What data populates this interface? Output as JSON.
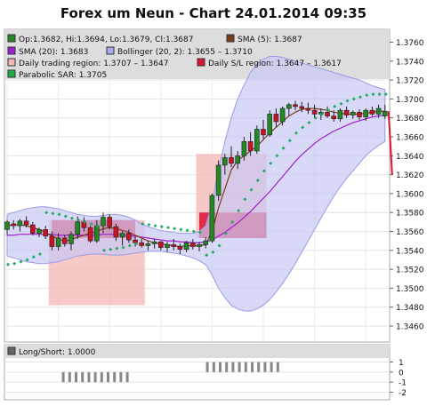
{
  "title": "Forex um Neun - Chart 24.01.2014 09:35",
  "legend": {
    "ohlc": {
      "label": "Op:1.3682, Hi:1.3694, Lo:1.3679, Cl:1.3687",
      "color": "#228822"
    },
    "sma5": {
      "label": "SMA (5): 1.3687",
      "color": "#7a3b1a"
    },
    "sma20": {
      "label": "SMA (20): 1.3683",
      "color": "#a020d0"
    },
    "bollinger": {
      "label": "Bollinger (20, 2): 1.3655 – 1.3710",
      "color": "#aaaaee"
    },
    "trading_region": {
      "label": "Daily trading region: 1.3707 – 1.3647",
      "color": "#f4b6b6"
    },
    "sl_region": {
      "label": "Daily S/L region: 1.3647 – 1.3617",
      "color": "#dd1133"
    },
    "psar": {
      "label": "Parabolic SAR: 1.3705",
      "color": "#22aa44"
    }
  },
  "lower_legend": {
    "label": "Long/Short: 1.0000",
    "color": "#666666"
  },
  "chart_data": {
    "type": "candlestick",
    "y_ticks": [
      "1.3460",
      "1.3480",
      "1.3500",
      "1.3520",
      "1.3540",
      "1.3560",
      "1.3580",
      "1.3600",
      "1.3620",
      "1.3640",
      "1.3660",
      "1.3680",
      "1.3700",
      "1.3720",
      "1.3740",
      "1.3760"
    ],
    "ylim": [
      1.346,
      1.377
    ],
    "lower_ticks": [
      "1",
      "0",
      "-1",
      "-2"
    ],
    "lower_ylim": [
      -2.4,
      1.4
    ],
    "candles": [
      [
        1.3562,
        1.3572,
        1.3556,
        1.357
      ],
      [
        1.3568,
        1.3572,
        1.3562,
        1.3566
      ],
      [
        1.3566,
        1.3573,
        1.356,
        1.3571
      ],
      [
        1.3571,
        1.3576,
        1.3564,
        1.3567
      ],
      [
        1.3567,
        1.357,
        1.3556,
        1.3558
      ],
      [
        1.3558,
        1.3564,
        1.3554,
        1.3562
      ],
      [
        1.3562,
        1.3566,
        1.3552,
        1.3555
      ],
      [
        1.3555,
        1.356,
        1.354,
        1.3544
      ],
      [
        1.3544,
        1.3558,
        1.354,
        1.3553
      ],
      [
        1.3553,
        1.3556,
        1.3544,
        1.3547
      ],
      [
        1.3547,
        1.356,
        1.354,
        1.3557
      ],
      [
        1.3557,
        1.3576,
        1.3552,
        1.357
      ],
      [
        1.357,
        1.3575,
        1.356,
        1.3564
      ],
      [
        1.3564,
        1.3566,
        1.3548,
        1.355
      ],
      [
        1.355,
        1.3572,
        1.3548,
        1.3566
      ],
      [
        1.3566,
        1.358,
        1.3558,
        1.3575
      ],
      [
        1.3575,
        1.3578,
        1.3562,
        1.3565
      ],
      [
        1.3565,
        1.3568,
        1.355,
        1.3554
      ],
      [
        1.3554,
        1.356,
        1.3545,
        1.3558
      ],
      [
        1.3558,
        1.3562,
        1.3548,
        1.3551
      ],
      [
        1.3551,
        1.3555,
        1.3544,
        1.3548
      ],
      [
        1.3548,
        1.3552,
        1.3543,
        1.3545
      ],
      [
        1.3545,
        1.355,
        1.354,
        1.3547
      ],
      [
        1.3547,
        1.3552,
        1.3542,
        1.3549
      ],
      [
        1.3549,
        1.355,
        1.354,
        1.3543
      ],
      [
        1.3543,
        1.3549,
        1.3538,
        1.3546
      ],
      [
        1.3546,
        1.3552,
        1.354,
        1.3544
      ],
      [
        1.3544,
        1.3547,
        1.3536,
        1.3541
      ],
      [
        1.3541,
        1.355,
        1.3538,
        1.3548
      ],
      [
        1.3548,
        1.3552,
        1.3541,
        1.3544
      ],
      [
        1.3544,
        1.3549,
        1.3539,
        1.3546
      ],
      [
        1.3546,
        1.3554,
        1.3542,
        1.355
      ],
      [
        1.355,
        1.36,
        1.3548,
        1.3598
      ],
      [
        1.3598,
        1.3635,
        1.3592,
        1.363
      ],
      [
        1.363,
        1.3642,
        1.362,
        1.3638
      ],
      [
        1.3638,
        1.365,
        1.3628,
        1.3632
      ],
      [
        1.3632,
        1.3645,
        1.3626,
        1.364
      ],
      [
        1.364,
        1.366,
        1.3635,
        1.3655
      ],
      [
        1.3655,
        1.3665,
        1.364,
        1.3645
      ],
      [
        1.3645,
        1.3672,
        1.3642,
        1.3668
      ],
      [
        1.3668,
        1.3678,
        1.3658,
        1.3662
      ],
      [
        1.3662,
        1.3688,
        1.366,
        1.3684
      ],
      [
        1.3684,
        1.369,
        1.367,
        1.3676
      ],
      [
        1.3676,
        1.3692,
        1.3672,
        1.369
      ],
      [
        1.369,
        1.3696,
        1.3682,
        1.3694
      ],
      [
        1.3694,
        1.3698,
        1.3688,
        1.3692
      ],
      [
        1.3692,
        1.3697,
        1.3686,
        1.369
      ],
      [
        1.369,
        1.3696,
        1.3684,
        1.3688
      ],
      [
        1.3688,
        1.3694,
        1.368,
        1.3684
      ],
      [
        1.3684,
        1.369,
        1.3678,
        1.3686
      ],
      [
        1.3686,
        1.3692,
        1.368,
        1.3682
      ],
      [
        1.3682,
        1.3688,
        1.3676,
        1.3679
      ],
      [
        1.3679,
        1.369,
        1.3676,
        1.3688
      ],
      [
        1.3688,
        1.3692,
        1.368,
        1.3683
      ],
      [
        1.3683,
        1.3688,
        1.3679,
        1.3686
      ],
      [
        1.3686,
        1.3689,
        1.3678,
        1.3681
      ],
      [
        1.3681,
        1.369,
        1.3677,
        1.3688
      ],
      [
        1.3688,
        1.3692,
        1.3682,
        1.3684
      ],
      [
        1.3684,
        1.3694,
        1.368,
        1.369
      ],
      [
        1.3682,
        1.3694,
        1.3679,
        1.3687
      ]
    ],
    "sma5": [
      1.3566,
      1.3567,
      1.3567,
      1.3566,
      1.3564,
      1.3562,
      1.3559,
      1.3555,
      1.3552,
      1.355,
      1.3551,
      1.3554,
      1.3556,
      1.3558,
      1.356,
      1.3563,
      1.3564,
      1.3563,
      1.3561,
      1.3559,
      1.3556,
      1.3553,
      1.355,
      1.3548,
      1.3547,
      1.3546,
      1.3545,
      1.3544,
      1.3545,
      1.3545,
      1.3545,
      1.3546,
      1.356,
      1.3585,
      1.3605,
      1.3625,
      1.3635,
      1.364,
      1.3645,
      1.365,
      1.3657,
      1.3664,
      1.367,
      1.3676,
      1.3682,
      1.3686,
      1.3689,
      1.369,
      1.369,
      1.3689,
      1.3688,
      1.3686,
      1.3685,
      1.3684,
      1.3684,
      1.3684,
      1.3685,
      1.3686,
      1.3687,
      1.3687
    ],
    "sma20": [
      1.3556,
      1.3556,
      1.3557,
      1.3557,
      1.3557,
      1.3557,
      1.3557,
      1.3557,
      1.3556,
      1.3556,
      1.3556,
      1.3556,
      1.3556,
      1.3556,
      1.3556,
      1.3557,
      1.3557,
      1.3557,
      1.3556,
      1.3556,
      1.3555,
      1.3554,
      1.3553,
      1.3552,
      1.3551,
      1.355,
      1.355,
      1.3549,
      1.3549,
      1.3548,
      1.3548,
      1.3549,
      1.3551,
      1.3555,
      1.3559,
      1.3564,
      1.3569,
      1.3575,
      1.3581,
      1.3588,
      1.3595,
      1.3602,
      1.361,
      1.3618,
      1.3626,
      1.3634,
      1.3641,
      1.3647,
      1.3653,
      1.3658,
      1.3662,
      1.3666,
      1.3669,
      1.3672,
      1.3675,
      1.3677,
      1.3679,
      1.3681,
      1.3682,
      1.3683
    ],
    "bb_upper": [
      1.3578,
      1.358,
      1.3582,
      1.3584,
      1.3585,
      1.3586,
      1.3586,
      1.3585,
      1.3584,
      1.3582,
      1.358,
      1.3578,
      1.3577,
      1.3576,
      1.3576,
      1.3577,
      1.3578,
      1.3578,
      1.3577,
      1.3575,
      1.3572,
      1.3568,
      1.3565,
      1.3563,
      1.3561,
      1.356,
      1.3559,
      1.3558,
      1.3558,
      1.3558,
      1.356,
      1.3566,
      1.359,
      1.3625,
      1.3655,
      1.368,
      1.37,
      1.3715,
      1.3728,
      1.3737,
      1.3742,
      1.3745,
      1.3745,
      1.3744,
      1.3742,
      1.374,
      1.3738,
      1.3736,
      1.3734,
      1.3732,
      1.373,
      1.3728,
      1.3726,
      1.3724,
      1.3722,
      1.372,
      1.3717,
      1.3714,
      1.3712,
      1.371
    ],
    "bb_lower": [
      1.3534,
      1.3532,
      1.353,
      1.3528,
      1.3527,
      1.3526,
      1.3526,
      1.3527,
      1.3528,
      1.353,
      1.3532,
      1.3534,
      1.3535,
      1.3536,
      1.3536,
      1.3536,
      1.3535,
      1.3535,
      1.3535,
      1.3536,
      1.3537,
      1.3538,
      1.3539,
      1.3539,
      1.3539,
      1.3538,
      1.3537,
      1.3536,
      1.3534,
      1.3532,
      1.3529,
      1.3525,
      1.3514,
      1.35,
      1.349,
      1.3482,
      1.3478,
      1.3476,
      1.3476,
      1.3478,
      1.3482,
      1.3488,
      1.3496,
      1.3505,
      1.3515,
      1.3526,
      1.3538,
      1.355,
      1.3562,
      1.3574,
      1.3586,
      1.3597,
      1.3607,
      1.3616,
      1.3624,
      1.3632,
      1.364,
      1.3646,
      1.3651,
      1.3655
    ],
    "psar": [
      1.3525,
      1.3526,
      1.3528,
      1.353,
      1.3533,
      1.3536,
      1.358,
      1.3579,
      1.3578,
      1.3576,
      1.3574,
      1.3572,
      1.357,
      1.3568,
      1.3566,
      1.354,
      1.3541,
      1.3542,
      1.3543,
      1.3545,
      1.3547,
      1.3568,
      1.3567,
      1.3566,
      1.3565,
      1.3564,
      1.3563,
      1.3562,
      1.3561,
      1.356,
      1.3559,
      1.3535,
      1.3538,
      1.3545,
      1.3558,
      1.357,
      1.3582,
      1.3594,
      1.3604,
      1.3614,
      1.3624,
      1.3632,
      1.364,
      1.3648,
      1.3656,
      1.3664,
      1.367,
      1.3675,
      1.368,
      1.3684,
      1.3688,
      1.3692,
      1.3695,
      1.3698,
      1.37,
      1.3702,
      1.3704,
      1.3705,
      1.3705,
      1.3705
    ],
    "trading_regions": [
      {
        "from": 13,
        "to": 43,
        "top": 1.3572,
        "bottom": 1.3482
      },
      {
        "from": 59,
        "to": 81,
        "top": 1.3642,
        "bottom": 1.3553
      }
    ],
    "sl_regions": [
      {
        "from": 14,
        "to": 40,
        "top": 1.3572,
        "bottom": 1.3553
      },
      {
        "from": 60,
        "to": 81,
        "top": 1.358,
        "bottom": 1.3553
      }
    ],
    "last_drop": [
      1.3687,
      1.362
    ],
    "long_short_short": [
      16,
      37
    ],
    "long_short_long": [
      61,
      83
    ]
  }
}
